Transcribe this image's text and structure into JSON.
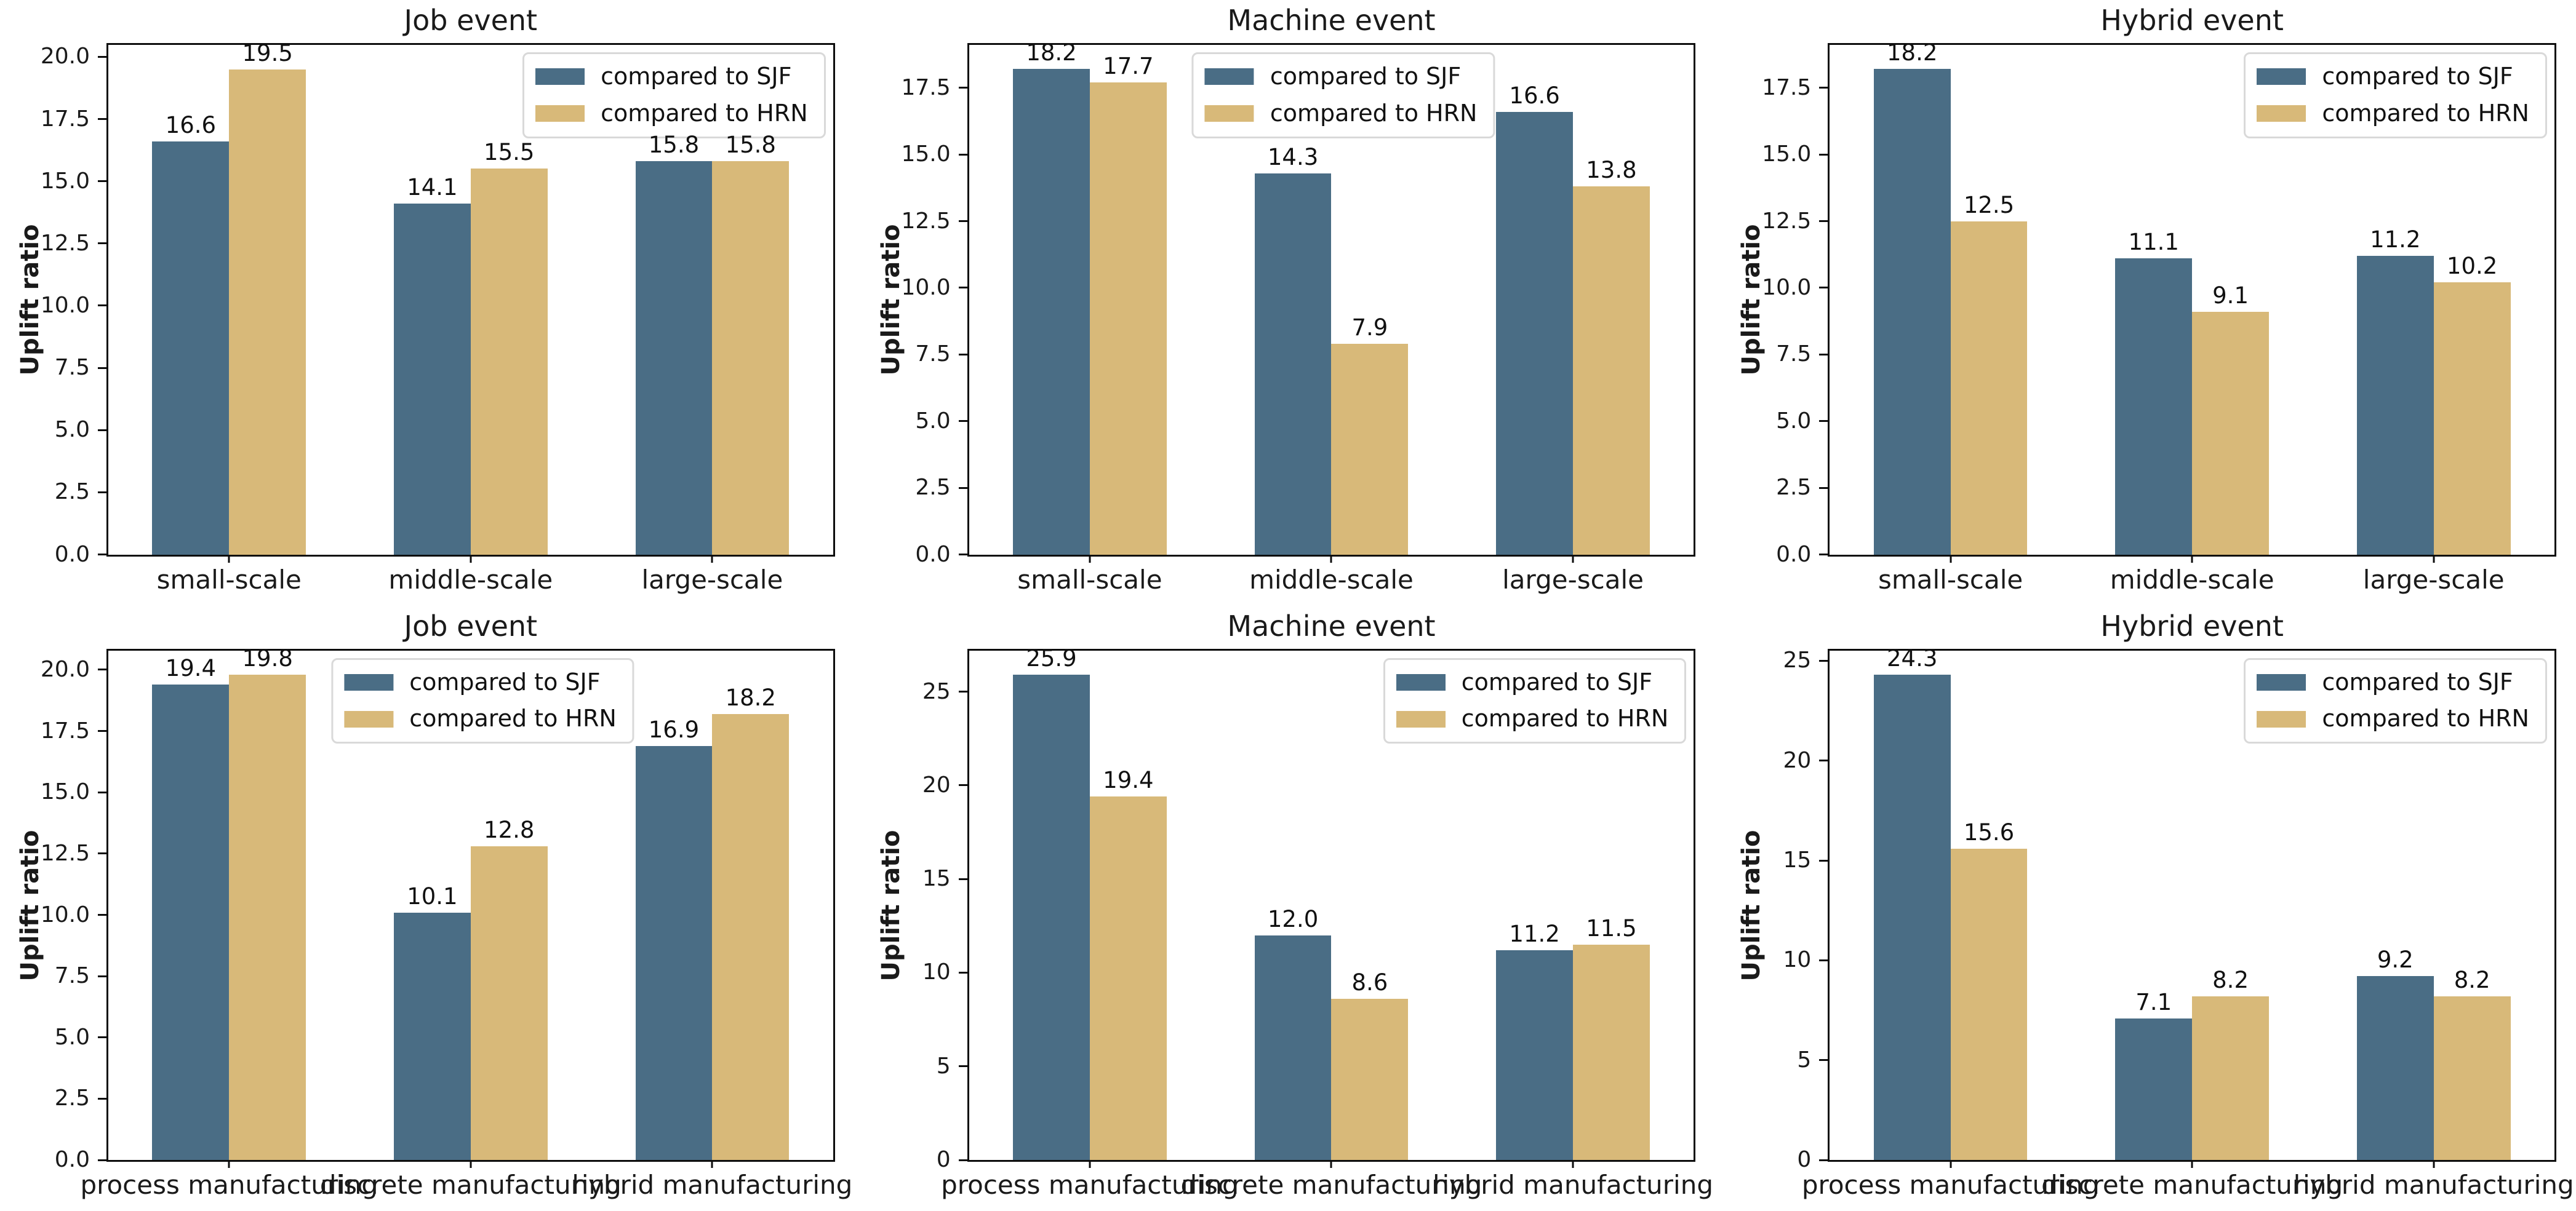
{
  "figure": {
    "background": "#ffffff"
  },
  "chart_data": {
    "type": "bar",
    "ylabel": "Uplift ratio",
    "legend_entries": [
      "compared to SJF",
      "compared to HRN"
    ],
    "colors": {
      "sjf": "#4a6d85",
      "hrn": "#d8b979",
      "spine": "#0d0d0d",
      "legend_border": "#d9d9d9"
    },
    "grid": "off",
    "charts": [
      {
        "title": "Job event",
        "categories": [
          "small-scale",
          "middle-scale",
          "large-scale"
        ],
        "series": [
          {
            "name": "compared to SJF",
            "values": [
              16.6,
              14.1,
              15.8
            ]
          },
          {
            "name": "compared to HRN",
            "values": [
              19.5,
              15.5,
              15.8
            ]
          }
        ],
        "ytick_values": [
          0,
          2.5,
          5,
          7.5,
          10,
          12.5,
          15,
          17.5,
          20
        ],
        "ytick_labels": [
          "0.0",
          "2.5",
          "5.0",
          "7.5",
          "10.0",
          "12.5",
          "15.0",
          "17.5",
          "20.0"
        ],
        "ylim": [
          0,
          20.48
        ],
        "legend_pos": "upper right"
      },
      {
        "title": "Machine event",
        "categories": [
          "small-scale",
          "middle-scale",
          "large-scale"
        ],
        "series": [
          {
            "name": "compared to SJF",
            "values": [
              18.2,
              14.3,
              16.6
            ]
          },
          {
            "name": "compared to HRN",
            "values": [
              17.7,
              7.9,
              13.8
            ]
          }
        ],
        "ytick_values": [
          0,
          2.5,
          5,
          7.5,
          10,
          12.5,
          15,
          17.5
        ],
        "ytick_labels": [
          "0.0",
          "2.5",
          "5.0",
          "7.5",
          "10.0",
          "12.5",
          "15.0",
          "17.5"
        ],
        "ylim": [
          0,
          19.11
        ],
        "legend_pos": "upper center"
      },
      {
        "title": "Hybrid event",
        "categories": [
          "small-scale",
          "middle-scale",
          "large-scale"
        ],
        "series": [
          {
            "name": "compared to SJF",
            "values": [
              18.2,
              11.1,
              11.2
            ]
          },
          {
            "name": "compared to HRN",
            "values": [
              12.5,
              9.1,
              10.2
            ]
          }
        ],
        "ytick_values": [
          0,
          2.5,
          5,
          7.5,
          10,
          12.5,
          15,
          17.5
        ],
        "ytick_labels": [
          "0.0",
          "2.5",
          "5.0",
          "7.5",
          "10.0",
          "12.5",
          "15.0",
          "17.5"
        ],
        "ylim": [
          0,
          19.11
        ],
        "legend_pos": "upper right"
      },
      {
        "title": "Job event",
        "categories": [
          "process manufacturing",
          "discrete manufacturing",
          "hybrid manufacturing"
        ],
        "series": [
          {
            "name": "compared to SJF",
            "values": [
              19.4,
              10.1,
              16.9
            ]
          },
          {
            "name": "compared to HRN",
            "values": [
              19.8,
              12.8,
              18.2
            ]
          }
        ],
        "ytick_values": [
          0,
          2.5,
          5,
          7.5,
          10,
          12.5,
          15,
          17.5,
          20
        ],
        "ytick_labels": [
          "0.0",
          "2.5",
          "5.0",
          "7.5",
          "10.0",
          "12.5",
          "15.0",
          "17.5",
          "20.0"
        ],
        "ylim": [
          0,
          20.79
        ],
        "legend_pos": "upper center"
      },
      {
        "title": "Machine event",
        "categories": [
          "process manufacturing",
          "discrete manufacturing",
          "hybrid manufacturing"
        ],
        "series": [
          {
            "name": "compared to SJF",
            "values": [
              25.9,
              12.0,
              11.2
            ]
          },
          {
            "name": "compared to HRN",
            "values": [
              19.4,
              8.6,
              11.5
            ]
          }
        ],
        "ytick_values": [
          0,
          5,
          10,
          15,
          20,
          25
        ],
        "ytick_labels": [
          "0",
          "5",
          "10",
          "15",
          "20",
          "25"
        ],
        "ylim": [
          0,
          27.2
        ],
        "legend_pos": "upper right"
      },
      {
        "title": "Hybrid event",
        "categories": [
          "process manufacturing",
          "discrete manufacturing",
          "hybrid manufacturing"
        ],
        "series": [
          {
            "name": "compared to SJF",
            "values": [
              24.3,
              7.1,
              9.2
            ]
          },
          {
            "name": "compared to HRN",
            "values": [
              15.6,
              8.2,
              8.2
            ]
          }
        ],
        "ytick_values": [
          0,
          5,
          10,
          15,
          20,
          25
        ],
        "ytick_labels": [
          "0",
          "5",
          "10",
          "15",
          "20",
          "25"
        ],
        "ylim": [
          0,
          25.52
        ],
        "legend_pos": "upper right"
      }
    ]
  }
}
